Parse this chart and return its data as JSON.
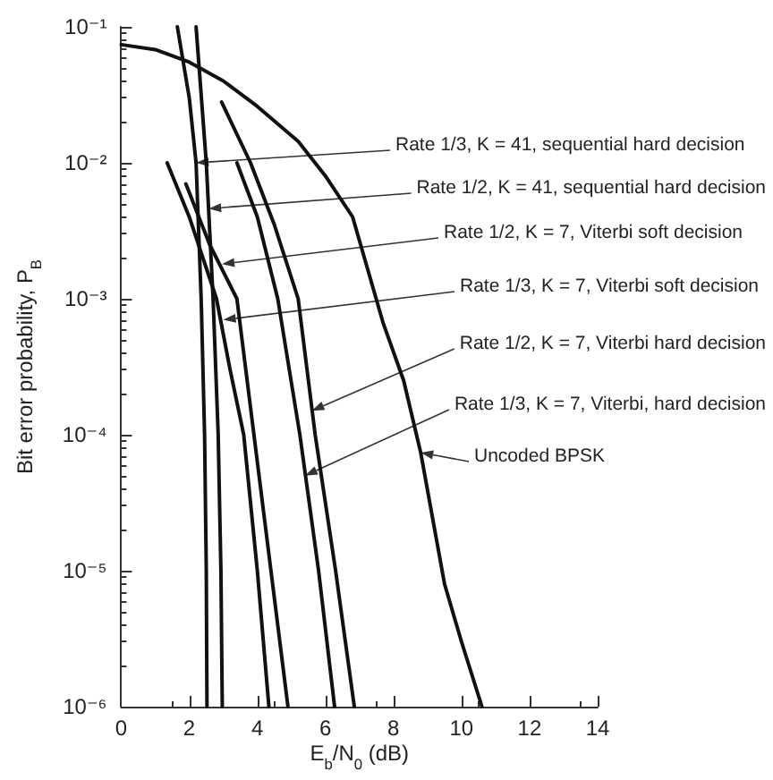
{
  "chart_data": {
    "type": "line",
    "xlabel": "E$_{b}$/N$_{0}$ (dB)",
    "ylabel": "Bit error probability, P$_{B}$",
    "log": "y",
    "xlim": [
      0,
      14
    ],
    "xticks": [
      0,
      2,
      4,
      6,
      8,
      10,
      12,
      14
    ],
    "ylim": [
      1e-06,
      0.1
    ],
    "yticks": [
      {
        "value": 1e-06,
        "label": "10⁻⁶"
      },
      {
        "value": 1e-05,
        "label": "10⁻⁵"
      },
      {
        "value": 0.0001,
        "label": "10⁻⁴"
      },
      {
        "value": 0.001,
        "label": "10⁻³"
      },
      {
        "value": 0.01,
        "label": "10⁻²"
      },
      {
        "value": 0.1,
        "label": "10⁻¹"
      }
    ],
    "grid": false,
    "marker": "none",
    "line_style": "solid",
    "series": [
      {
        "color": "#111111",
        "x": [
          1.65,
          2.0,
          2.2,
          2.35,
          2.45,
          2.5,
          2.52
        ],
        "values": [
          0.1,
          0.03,
          0.01,
          0.001,
          0.0001,
          1e-05,
          1e-06
        ]
      },
      {
        "color": "#111111",
        "x": [
          2.2,
          2.5,
          2.7,
          2.85,
          2.93,
          2.97
        ],
        "values": [
          0.1,
          0.01,
          0.001,
          0.0001,
          1e-05,
          1e-06
        ]
      },
      {
        "color": "#111111",
        "x": [
          1.9,
          2.6,
          3.4,
          3.9,
          4.4,
          4.9
        ],
        "values": [
          0.007,
          0.0025,
          0.001,
          0.0001,
          1e-05,
          1e-06
        ]
      },
      {
        "color": "#111111",
        "x": [
          1.35,
          2.0,
          2.8,
          3.2,
          3.6,
          4.0,
          4.34
        ],
        "values": [
          0.01,
          0.004,
          0.001,
          0.0003,
          0.0001,
          1e-05,
          1e-06
        ]
      },
      {
        "color": "#111111",
        "x": [
          2.95,
          3.8,
          4.5,
          5.2,
          5.7,
          6.3,
          6.85
        ],
        "values": [
          0.028,
          0.01,
          0.0035,
          0.001,
          0.0001,
          1e-05,
          1e-06
        ]
      },
      {
        "color": "#111111",
        "x": [
          3.4,
          4.0,
          4.6,
          5.25,
          5.8,
          6.27
        ],
        "values": [
          0.01,
          0.004,
          0.001,
          0.0001,
          1e-05,
          1e-06
        ]
      },
      {
        "color": "#111111",
        "x": [
          0,
          1,
          2,
          3,
          4,
          5.2,
          6,
          6.8,
          7.7,
          8.3,
          8.8,
          9.5,
          10,
          10.6
        ],
        "values": [
          0.074,
          0.068,
          0.055,
          0.04,
          0.026,
          0.0144,
          0.008,
          0.004,
          0.00066,
          0.00025,
          7.4e-05,
          8e-06,
          3e-06,
          1e-06
        ]
      }
    ],
    "annotations": [
      {
        "text": "Rate 1/3, K = 41, sequential hard decision",
        "x": 2.2,
        "y": 0.01
      },
      {
        "text": "Rate 1/2, K = 41, sequential hard decision",
        "x": 2.57,
        "y": 0.0046
      },
      {
        "text": "Rate 1/2, K = 7, Viterbi soft decision",
        "x": 2.96,
        "y": 0.0018
      },
      {
        "text": "Rate 1/3, K = 7, Viterbi soft decision",
        "x": 3.0,
        "y": 0.0007
      },
      {
        "text": "Rate 1/2, K = 7, Viterbi hard decision",
        "x": 5.6,
        "y": 0.00015
      },
      {
        "text": "Rate 1/3, K = 7, Viterbi, hard decision",
        "x": 5.4,
        "y": 5e-05
      },
      {
        "text": "Uncoded BPSK",
        "x": 8.8,
        "y": 7.4e-05
      }
    ]
  }
}
